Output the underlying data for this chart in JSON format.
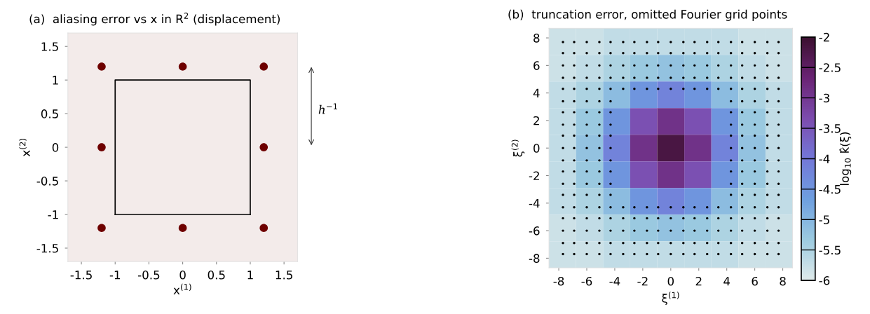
{
  "chart_data": [
    {
      "type": "scatter",
      "title": "(a)  aliasing error vs x in R$^{2}$ (displacement)",
      "xlabel": "x$^{(1)}$",
      "ylabel": "x$^{(2)}$",
      "xlim": [
        -1.7,
        1.7
      ],
      "ylim": [
        -1.7,
        1.7
      ],
      "xticks": [
        -1.5,
        -1,
        -0.5,
        0,
        0.5,
        1,
        1.5
      ],
      "yticks": [
        -1.5,
        -1,
        -0.5,
        0,
        0.5,
        1,
        1.5
      ],
      "annotations": [
        "h$^{−1}$"
      ],
      "series": [
        {
          "type": "scatter",
          "color": "#6e0000",
          "x": [
            -1.2,
            0,
            1.2,
            -1.2,
            1.2,
            -1.2,
            0,
            1.2
          ],
          "values": [
            1.2,
            1.2,
            1.2,
            0,
            0,
            -1.2,
            -1.2,
            -1.2
          ]
        },
        {
          "type": "line",
          "color": "#000000",
          "x": [
            -1,
            -1,
            1,
            1
          ],
          "values": [
            -1,
            1,
            1,
            -1
          ]
        },
        {
          "type": "line",
          "color": "#000000",
          "x": [
            -1,
            1
          ],
          "values": [
            -1,
            -1
          ]
        }
      ]
    },
    {
      "type": "heatmap",
      "title": "(b)  truncation error, omitted Fourier grid points",
      "xlabel": "ξ$^{(1)}$",
      "ylabel": "ξ$^{(2)}$",
      "clabel": "log$_{10}$ k̂(ξ)",
      "xlim": [
        -8.7,
        8.7
      ],
      "ylim": [
        -8.7,
        8.7
      ],
      "xticks": [
        -8,
        -6,
        -4,
        -2,
        0,
        2,
        4,
        6,
        8
      ],
      "yticks": [
        -8,
        -6,
        -4,
        -2,
        0,
        2,
        4,
        6,
        8
      ],
      "clim": [
        -6,
        -2
      ],
      "cticks": [
        -6,
        -5.5,
        -5,
        -4.5,
        -4,
        -3.5,
        -3,
        -2.5,
        -2
      ],
      "cells": [
        [
          -5.8,
          -5.8,
          -5.7,
          -5.7,
          -5.7,
          -5.7,
          -5.7,
          -5.8,
          -5.8
        ],
        [
          -5.8,
          -5.7,
          -5.5,
          -5.3,
          -5.2,
          -5.3,
          -5.5,
          -5.7,
          -5.8
        ],
        [
          -5.7,
          -5.5,
          -5.1,
          -4.5,
          -4.2,
          -4.5,
          -5.1,
          -5.5,
          -5.7
        ],
        [
          -5.7,
          -5.3,
          -4.5,
          -3.4,
          -2.9,
          -3.4,
          -4.5,
          -5.3,
          -5.7
        ],
        [
          -5.7,
          -5.2,
          -4.2,
          -2.9,
          -2.2,
          -2.9,
          -4.2,
          -5.2,
          -5.7
        ],
        [
          -5.7,
          -5.3,
          -4.5,
          -3.4,
          -2.9,
          -3.4,
          -4.5,
          -5.3,
          -5.7
        ],
        [
          -5.7,
          -5.5,
          -5.1,
          -4.5,
          -4.2,
          -4.5,
          -5.1,
          -5.5,
          -5.7
        ],
        [
          -5.8,
          -5.7,
          -5.5,
          -5.3,
          -5.2,
          -5.3,
          -5.5,
          -5.7,
          -5.8
        ],
        [
          -5.8,
          -5.8,
          -5.7,
          -5.7,
          -5.7,
          -5.7,
          -5.7,
          -5.8,
          -5.8
        ]
      ],
      "series": [
        {
          "type": "scatter",
          "color": "#000000",
          "x": [
            -7.7,
            -6.9,
            -6.0,
            -5.1,
            -4.3,
            -3.4,
            -2.6,
            -1.7,
            -0.9,
            0,
            0.9,
            1.7,
            2.6,
            3.4,
            4.3,
            5.1,
            6.0,
            6.9,
            7.7
          ],
          "values": [
            7.7,
            7.7,
            7.7,
            7.7,
            7.7,
            7.7,
            7.7,
            7.7,
            7.7,
            7.7,
            7.7,
            7.7,
            7.7,
            7.7,
            7.7,
            7.7,
            7.7,
            7.7,
            7.7
          ]
        },
        {
          "type": "scatter",
          "color": "#000000",
          "x": [
            -7.7,
            -6.9,
            -6.0,
            -5.1,
            -4.3,
            -3.4,
            -2.6,
            -1.7,
            -0.9,
            0,
            0.9,
            1.7,
            2.6,
            3.4,
            4.3,
            5.1,
            6.0,
            6.9,
            7.7
          ],
          "values": [
            6.9,
            6.9,
            6.9,
            6.9,
            6.9,
            6.9,
            6.9,
            6.9,
            6.9,
            6.9,
            6.9,
            6.9,
            6.9,
            6.9,
            6.9,
            6.9,
            6.9,
            6.9,
            6.9
          ]
        },
        {
          "type": "scatter",
          "color": "#000000",
          "x": [
            -7.7,
            -6.9,
            -6.0,
            -5.1,
            -4.3,
            -3.4,
            -2.6,
            -1.7,
            -0.9,
            0,
            0.9,
            1.7,
            2.6,
            3.4,
            4.3,
            5.1,
            6.0,
            6.9,
            7.7
          ],
          "values": [
            6.0,
            6.0,
            6.0,
            6.0,
            6.0,
            6.0,
            6.0,
            6.0,
            6.0,
            6.0,
            6.0,
            6.0,
            6.0,
            6.0,
            6.0,
            6.0,
            6.0,
            6.0,
            6.0
          ]
        },
        {
          "type": "scatter",
          "color": "#000000",
          "x": [
            -7.7,
            -6.9,
            -6.0,
            -5.1,
            -4.3,
            -3.4,
            -2.6,
            -1.7,
            -0.9,
            0,
            0.9,
            1.7,
            2.6,
            3.4,
            4.3,
            5.1,
            6.0,
            6.9,
            7.7
          ],
          "values": [
            5.1,
            5.1,
            5.1,
            5.1,
            5.1,
            5.1,
            5.1,
            5.1,
            5.1,
            5.1,
            5.1,
            5.1,
            5.1,
            5.1,
            5.1,
            5.1,
            5.1,
            5.1,
            5.1
          ]
        },
        {
          "type": "scatter",
          "color": "#000000",
          "x": [
            -7.7,
            -6.9,
            -6.0,
            -5.1,
            -4.3,
            -3.4,
            -2.6,
            -1.7,
            -0.9,
            0,
            0.9,
            1.7,
            2.6,
            3.4,
            4.3,
            5.1,
            6.0,
            6.9,
            7.7
          ],
          "values": [
            4.3,
            4.3,
            4.3,
            4.3,
            4.3,
            4.3,
            4.3,
            4.3,
            4.3,
            4.3,
            4.3,
            4.3,
            4.3,
            4.3,
            4.3,
            4.3,
            4.3,
            4.3,
            4.3
          ]
        },
        {
          "type": "scatter",
          "color": "#000000",
          "x": [
            -7.7,
            -6.9,
            -6.0,
            -5.1,
            -4.3,
            4.3,
            5.1,
            6.0,
            6.9,
            7.7
          ],
          "values": [
            3.4,
            3.4,
            3.4,
            3.4,
            3.4,
            3.4,
            3.4,
            3.4,
            3.4,
            3.4
          ]
        },
        {
          "type": "scatter",
          "color": "#000000",
          "x": [
            -7.7,
            -6.9,
            -6.0,
            -5.1,
            -4.3,
            4.3,
            5.1,
            6.0,
            6.9,
            7.7
          ],
          "values": [
            2.6,
            2.6,
            2.6,
            2.6,
            2.6,
            2.6,
            2.6,
            2.6,
            2.6,
            2.6
          ]
        },
        {
          "type": "scatter",
          "color": "#000000",
          "x": [
            -7.7,
            -6.9,
            -6.0,
            -5.1,
            -4.3,
            4.3,
            5.1,
            6.0,
            6.9,
            7.7
          ],
          "values": [
            1.7,
            1.7,
            1.7,
            1.7,
            1.7,
            1.7,
            1.7,
            1.7,
            1.7,
            1.7
          ]
        },
        {
          "type": "scatter",
          "color": "#000000",
          "x": [
            -7.7,
            -6.9,
            -6.0,
            -5.1,
            -4.3,
            4.3,
            5.1,
            6.0,
            6.9,
            7.7
          ],
          "values": [
            0.9,
            0.9,
            0.9,
            0.9,
            0.9,
            0.9,
            0.9,
            0.9,
            0.9,
            0.9
          ]
        },
        {
          "type": "scatter",
          "color": "#000000",
          "x": [
            -7.7,
            -6.9,
            -6.0,
            -5.1,
            -4.3,
            4.3,
            5.1,
            6.0,
            6.9,
            7.7
          ],
          "values": [
            0,
            0,
            0,
            0,
            0,
            0,
            0,
            0,
            0,
            0
          ]
        },
        {
          "type": "scatter",
          "color": "#000000",
          "x": [
            -7.7,
            -6.9,
            -6.0,
            -5.1,
            -4.3,
            4.3,
            5.1,
            6.0,
            6.9,
            7.7
          ],
          "values": [
            -0.9,
            -0.9,
            -0.9,
            -0.9,
            -0.9,
            -0.9,
            -0.9,
            -0.9,
            -0.9,
            -0.9
          ]
        },
        {
          "type": "scatter",
          "color": "#000000",
          "x": [
            -7.7,
            -6.9,
            -6.0,
            -5.1,
            -4.3,
            4.3,
            5.1,
            6.0,
            6.9,
            7.7
          ],
          "values": [
            -1.7,
            -1.7,
            -1.7,
            -1.7,
            -1.7,
            -1.7,
            -1.7,
            -1.7,
            -1.7,
            -1.7
          ]
        },
        {
          "type": "scatter",
          "color": "#000000",
          "x": [
            -7.7,
            -6.9,
            -6.0,
            -5.1,
            -4.3,
            4.3,
            5.1,
            6.0,
            6.9,
            7.7
          ],
          "values": [
            -2.6,
            -2.6,
            -2.6,
            -2.6,
            -2.6,
            -2.6,
            -2.6,
            -2.6,
            -2.6,
            -2.6
          ]
        },
        {
          "type": "scatter",
          "color": "#000000",
          "x": [
            -7.7,
            -6.9,
            -6.0,
            -5.1,
            -4.3,
            4.3,
            5.1,
            6.0,
            6.9,
            7.7
          ],
          "values": [
            -3.4,
            -3.4,
            -3.4,
            -3.4,
            -3.4,
            -3.4,
            -3.4,
            -3.4,
            -3.4,
            -3.4
          ]
        },
        {
          "type": "scatter",
          "color": "#000000",
          "x": [
            -7.7,
            -6.9,
            -6.0,
            -5.1,
            -4.3,
            -3.4,
            -2.6,
            -1.7,
            -0.9,
            0,
            0.9,
            1.7,
            2.6,
            3.4,
            4.3,
            5.1,
            6.0,
            6.9,
            7.7
          ],
          "values": [
            -4.3,
            -4.3,
            -4.3,
            -4.3,
            -4.3,
            -4.3,
            -4.3,
            -4.3,
            -4.3,
            -4.3,
            -4.3,
            -4.3,
            -4.3,
            -4.3,
            -4.3,
            -4.3,
            -4.3,
            -4.3,
            -4.3
          ]
        },
        {
          "type": "scatter",
          "color": "#000000",
          "x": [
            -7.7,
            -6.9,
            -6.0,
            -5.1,
            -4.3,
            -3.4,
            -2.6,
            -1.7,
            -0.9,
            0,
            0.9,
            1.7,
            2.6,
            3.4,
            4.3,
            5.1,
            6.0,
            6.9,
            7.7
          ],
          "values": [
            -5.1,
            -5.1,
            -5.1,
            -5.1,
            -5.1,
            -5.1,
            -5.1,
            -5.1,
            -5.1,
            -5.1,
            -5.1,
            -5.1,
            -5.1,
            -5.1,
            -5.1,
            -5.1,
            -5.1,
            -5.1,
            -5.1
          ]
        },
        {
          "type": "scatter",
          "color": "#000000",
          "x": [
            -7.7,
            -6.9,
            -6.0,
            -5.1,
            -4.3,
            -3.4,
            -2.6,
            -1.7,
            -0.9,
            0,
            0.9,
            1.7,
            2.6,
            3.4,
            4.3,
            5.1,
            6.0,
            6.9,
            7.7
          ],
          "values": [
            -6.0,
            -6.0,
            -6.0,
            -6.0,
            -6.0,
            -6.0,
            -6.0,
            -6.0,
            -6.0,
            -6.0,
            -6.0,
            -6.0,
            -6.0,
            -6.0,
            -6.0,
            -6.0,
            -6.0,
            -6.0,
            -6.0
          ]
        },
        {
          "type": "scatter",
          "color": "#000000",
          "x": [
            -7.7,
            -6.9,
            -6.0,
            -5.1,
            -4.3,
            -3.4,
            -2.6,
            -1.7,
            -0.9,
            0,
            0.9,
            1.7,
            2.6,
            3.4,
            4.3,
            5.1,
            6.0,
            6.9,
            7.7
          ],
          "values": [
            -6.9,
            -6.9,
            -6.9,
            -6.9,
            -6.9,
            -6.9,
            -6.9,
            -6.9,
            -6.9,
            -6.9,
            -6.9,
            -6.9,
            -6.9,
            -6.9,
            -6.9,
            -6.9,
            -6.9,
            -6.9,
            -6.9
          ]
        },
        {
          "type": "scatter",
          "color": "#000000",
          "x": [
            -7.7,
            -6.9,
            -6.0,
            -5.1,
            -4.3,
            -3.4,
            -2.6,
            -1.7,
            -0.9,
            0,
            0.9,
            1.7,
            2.6,
            3.4,
            4.3,
            5.1,
            6.0,
            6.9,
            7.7
          ],
          "values": [
            -7.7,
            -7.7,
            -7.7,
            -7.7,
            -7.7,
            -7.7,
            -7.7,
            -7.7,
            -7.7,
            -7.7,
            -7.7,
            -7.7,
            -7.7,
            -7.7,
            -7.7,
            -7.7,
            -7.7,
            -7.7,
            -7.7
          ]
        }
      ]
    }
  ]
}
